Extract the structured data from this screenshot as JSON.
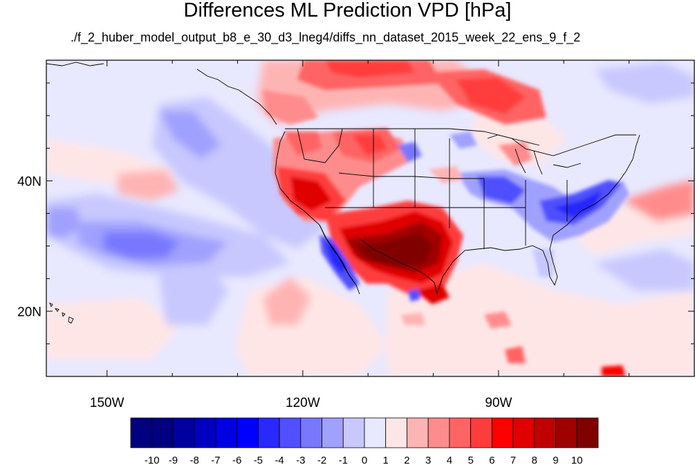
{
  "title": "Differences ML Prediction VPD [hPa]",
  "subtitle": "./f_2_huber_model_output_b8_e_30_d3_lneg4/diffs_nn_dataset_2015_week_22_ens_9_f_2",
  "axes": {
    "lon_ticks": [
      {
        "lon": -150,
        "label": "150W"
      },
      {
        "lon": -120,
        "label": "120W"
      },
      {
        "lon": -90,
        "label": "90W"
      }
    ],
    "lat_ticks": [
      {
        "lat": 40,
        "label": "40N"
      },
      {
        "lat": 20,
        "label": "20N"
      }
    ],
    "lon_range": [
      -159.3,
      -60
    ],
    "lat_range": [
      10,
      58.5
    ]
  },
  "colorbar": {
    "labels": [
      "-10",
      "-9",
      "-8",
      "-7",
      "-6",
      "-5",
      "-4",
      "-3",
      "-2",
      "-1",
      "0",
      "1",
      "2",
      "3",
      "4",
      "5",
      "6",
      "7",
      "8",
      "9",
      "10"
    ],
    "colors": [
      "#000080",
      "#0000a0",
      "#0000c0",
      "#0000e0",
      "#0000ff",
      "#2828ff",
      "#5050ff",
      "#7878ff",
      "#a0a0ff",
      "#c8c8ff",
      "#e8e8ff",
      "#ffe6e6",
      "#ffb4b4",
      "#ff8c8c",
      "#ff6464",
      "#ff3c3c",
      "#ff0000",
      "#e00000",
      "#c00000",
      "#a00000",
      "#800000"
    ]
  }
}
